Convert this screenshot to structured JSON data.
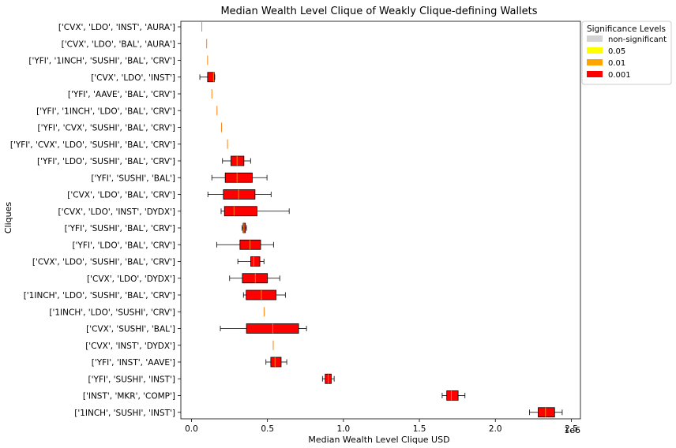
{
  "chart_data": {
    "type": "boxplot-horizontal",
    "title": "Median Wealth Level Clique of Weakly Clique-defining Wallets",
    "xlabel": "Median Wealth Level Clique USD",
    "ylabel": "Cliques",
    "x_scale_label": "1e6",
    "xlim": [
      -70000,
      2560000
    ],
    "x_ticks": [
      0,
      500000,
      1000000,
      1500000,
      2000000,
      2500000
    ],
    "x_tick_labels": [
      "0.0",
      "0.5",
      "1.0",
      "1.5",
      "2.0",
      "2.5"
    ],
    "grid": false,
    "legend": {
      "title": "Significance Levels",
      "placement": "outside-top-right",
      "entries": [
        {
          "label": "non-significant",
          "color": "#d3d3d3"
        },
        {
          "label": "0.05",
          "color": "#ffff00"
        },
        {
          "label": "0.01",
          "color": "#ffa500"
        },
        {
          "label": "0.001",
          "color": "#ff0000"
        }
      ]
    },
    "median_color": "#ff7f0e",
    "categories": [
      {
        "label": "['CVX', 'LDO', 'INST', 'AURA']",
        "whisker_low": 68000,
        "q1": 68000,
        "median": 68000,
        "q3": 68000,
        "whisker_high": 68000,
        "significance": "0.001"
      },
      {
        "label": "['CVX', 'LDO', 'BAL', 'AURA']",
        "whisker_low": 100000,
        "q1": 100000,
        "median": 100000,
        "q3": 100000,
        "whisker_high": 100000,
        "significance": "0.001"
      },
      {
        "label": "['YFI', '1INCH', 'SUSHI', 'BAL', 'CRV']",
        "whisker_low": 106000,
        "q1": 106000,
        "median": 106000,
        "q3": 106000,
        "whisker_high": 106000,
        "significance": "0.001"
      },
      {
        "label": "['CVX', 'LDO', 'INST']",
        "whisker_low": 55000,
        "q1": 106000,
        "median": 145000,
        "q3": 150000,
        "whisker_high": 153000,
        "significance": "0.001"
      },
      {
        "label": "['YFI', 'AAVE', 'BAL', 'CRV']",
        "whisker_low": 134000,
        "q1": 134000,
        "median": 134000,
        "q3": 134000,
        "whisker_high": 134000,
        "significance": "0.001"
      },
      {
        "label": "['YFI', '1INCH', 'LDO', 'BAL', 'CRV']",
        "whisker_low": 168000,
        "q1": 168000,
        "median": 168000,
        "q3": 168000,
        "whisker_high": 168000,
        "significance": "0.001"
      },
      {
        "label": "['YFI', 'CVX', 'SUSHI', 'BAL', 'CRV']",
        "whisker_low": 198000,
        "q1": 198000,
        "median": 198000,
        "q3": 198000,
        "whisker_high": 198000,
        "significance": "0.001"
      },
      {
        "label": "['YFI', 'CVX', 'LDO', 'SUSHI', 'BAL', 'CRV']",
        "whisker_low": 237000,
        "q1": 237000,
        "median": 237000,
        "q3": 237000,
        "whisker_high": 237000,
        "significance": "0.001"
      },
      {
        "label": "['YFI', 'LDO', 'SUSHI', 'BAL', 'CRV']",
        "whisker_low": 204000,
        "q1": 260000,
        "median": 300000,
        "q3": 345000,
        "whisker_high": 389000,
        "significance": "0.001"
      },
      {
        "label": "['YFI', 'SUSHI', 'BAL']",
        "whisker_low": 134000,
        "q1": 222000,
        "median": 300000,
        "q3": 400000,
        "whisker_high": 497000,
        "significance": "0.001"
      },
      {
        "label": "['CVX', 'LDO', 'BAL', 'CRV']",
        "whisker_low": 108000,
        "q1": 210000,
        "median": 310000,
        "q3": 418000,
        "whisker_high": 524000,
        "significance": "0.001"
      },
      {
        "label": "['CVX', 'LDO', 'INST', 'DYDX']",
        "whisker_low": 195000,
        "q1": 217000,
        "median": 280000,
        "q3": 431000,
        "whisker_high": 643000,
        "significance": "0.001"
      },
      {
        "label": "['YFI', 'SUSHI', 'BAL', 'CRV']",
        "whisker_low": 333000,
        "q1": 340000,
        "median": 345000,
        "q3": 355000,
        "whisker_high": 362000,
        "significance": "0.001"
      },
      {
        "label": "['YFI', 'LDO', 'BAL', 'CRV']",
        "whisker_low": 166000,
        "q1": 319000,
        "median": 385000,
        "q3": 455000,
        "whisker_high": 540000,
        "significance": "0.001"
      },
      {
        "label": "['CVX', 'LDO', 'SUSHI', 'BAL', 'CRV']",
        "whisker_low": 305000,
        "q1": 390000,
        "median": 410000,
        "q3": 450000,
        "whisker_high": 477000,
        "significance": "0.001"
      },
      {
        "label": "['CVX', 'LDO', 'DYDX']",
        "whisker_low": 251000,
        "q1": 335000,
        "median": 420000,
        "q3": 500000,
        "whisker_high": 581000,
        "significance": "0.001"
      },
      {
        "label": "['1INCH', 'LDO', 'SUSHI', 'BAL', 'CRV']",
        "whisker_low": 342000,
        "q1": 360000,
        "median": 460000,
        "q3": 557000,
        "whisker_high": 618000,
        "significance": "0.001"
      },
      {
        "label": "['1INCH', 'LDO', 'SUSHI', 'CRV']",
        "whisker_low": 478000,
        "q1": 478000,
        "median": 478000,
        "q3": 478000,
        "whisker_high": 478000,
        "significance": "0.001"
      },
      {
        "label": "['CVX', 'SUSHI', 'BAL']",
        "whisker_low": 190000,
        "q1": 362000,
        "median": 535000,
        "q3": 705000,
        "whisker_high": 757000,
        "significance": "0.001"
      },
      {
        "label": "['CVX', 'INST', 'DYDX']",
        "whisker_low": 538000,
        "q1": 538000,
        "median": 538000,
        "q3": 538000,
        "whisker_high": 538000,
        "significance": "0.001"
      },
      {
        "label": "['YFI', 'INST', 'AAVE']",
        "whisker_low": 490000,
        "q1": 522000,
        "median": 550000,
        "q3": 590000,
        "whisker_high": 627000,
        "significance": "0.001"
      },
      {
        "label": "['YFI', 'SUSHI', 'INST']",
        "whisker_low": 862000,
        "q1": 880000,
        "median": 900000,
        "q3": 920000,
        "whisker_high": 939000,
        "significance": "0.001"
      },
      {
        "label": "['INST', 'MKR', 'COMP']",
        "whisker_low": 1650000,
        "q1": 1680000,
        "median": 1710000,
        "q3": 1755000,
        "whisker_high": 1800000,
        "significance": "0.001"
      },
      {
        "label": "['1INCH', 'SUSHI', 'INST']",
        "whisker_low": 2225000,
        "q1": 2282000,
        "median": 2330000,
        "q3": 2390000,
        "whisker_high": 2440000,
        "significance": "0.001"
      }
    ]
  }
}
